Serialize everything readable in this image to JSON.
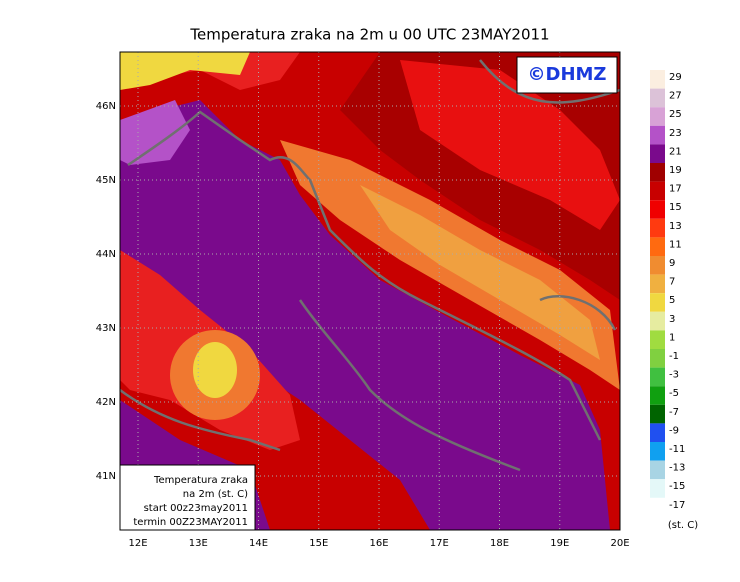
{
  "title": "Temperatura zraka na 2m u 00 UTC 23MAY2011",
  "logo": "©DHMZ",
  "lat_labels": [
    "46N",
    "45N",
    "44N",
    "43N",
    "42N",
    "41N"
  ],
  "lon_labels": [
    "12E",
    "13E",
    "14E",
    "15E",
    "16E",
    "17E",
    "18E",
    "19E",
    "20E"
  ],
  "colorbar": {
    "levels": [
      29,
      27,
      25,
      23,
      21,
      19,
      17,
      15,
      13,
      11,
      9,
      7,
      5,
      3,
      1,
      -1,
      -3,
      -5,
      -7,
      -9,
      -11,
      -13,
      -15,
      -17
    ],
    "colors": [
      "#fbeee0",
      "#dcc2d8",
      "#d8a2d6",
      "#b452c8",
      "#7a0a8c",
      "#a00000",
      "#c80000",
      "#f00000",
      "#ff3a10",
      "#ff6a10",
      "#f08c30",
      "#f0b040",
      "#f0d840",
      "#e6eca0",
      "#a0dc40",
      "#80d040",
      "#40c040",
      "#10a010",
      "#006400",
      "#2050f0",
      "#10a0f0",
      "#a8d4e4",
      "#e4f8f8"
    ],
    "unit": "(st. C)"
  },
  "info_box": [
    "Temperatura zraka",
    "na 2m (st. C)",
    "start 00z23may2011",
    "termin 00Z23MAY2011"
  ]
}
